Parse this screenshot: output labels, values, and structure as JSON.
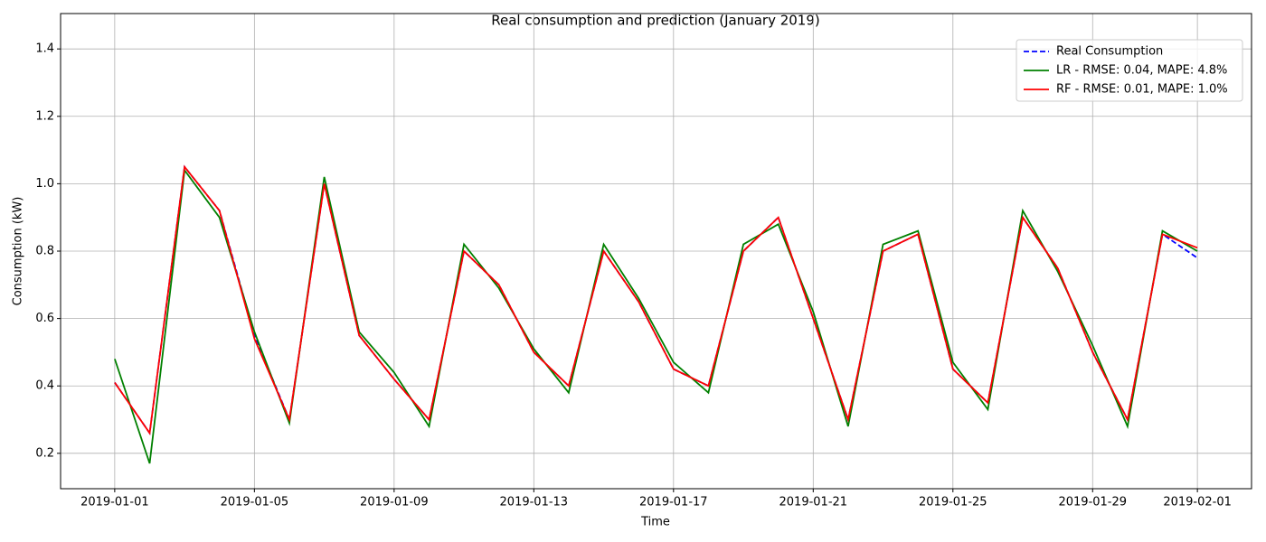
{
  "chart_data": {
    "type": "line",
    "title": "Real consumption and prediction (January 2019)",
    "x_label": "Time",
    "y_label": "Consumption (kW)",
    "x": [
      "2019-01-01",
      "2019-01-02",
      "2019-01-03",
      "2019-01-04",
      "2019-01-05",
      "2019-01-06",
      "2019-01-07",
      "2019-01-08",
      "2019-01-09",
      "2019-01-10",
      "2019-01-11",
      "2019-01-12",
      "2019-01-13",
      "2019-01-14",
      "2019-01-15",
      "2019-01-16",
      "2019-01-17",
      "2019-01-18",
      "2019-01-19",
      "2019-01-20",
      "2019-01-21",
      "2019-01-22",
      "2019-01-23",
      "2019-01-24",
      "2019-01-25",
      "2019-01-26",
      "2019-01-27",
      "2019-01-28",
      "2019-01-29",
      "2019-01-30",
      "2019-01-31",
      "2019-02-01"
    ],
    "series": [
      {
        "name": "Real Consumption",
        "color": "#0000ff",
        "dash": true,
        "values": [
          0.41,
          0.26,
          1.05,
          0.92,
          0.55,
          0.3,
          1.0,
          0.55,
          0.42,
          0.3,
          0.8,
          0.7,
          0.5,
          0.4,
          0.8,
          0.65,
          0.45,
          0.4,
          0.8,
          0.9,
          0.6,
          0.3,
          0.8,
          0.85,
          0.45,
          0.35,
          0.9,
          0.75,
          0.5,
          0.3,
          0.85,
          0.78
        ]
      },
      {
        "name": "LR - RMSE: 0.04, MAPE: 4.8%",
        "color": "#008000",
        "dash": false,
        "values": [
          0.48,
          0.17,
          1.04,
          0.9,
          0.56,
          0.29,
          1.02,
          0.56,
          0.44,
          0.28,
          0.82,
          0.69,
          0.51,
          0.38,
          0.82,
          0.66,
          0.47,
          0.38,
          0.82,
          0.88,
          0.62,
          0.28,
          0.82,
          0.86,
          0.47,
          0.33,
          0.92,
          0.74,
          0.52,
          0.28,
          0.86,
          0.8
        ]
      },
      {
        "name": "RF - RMSE: 0.01, MAPE: 1.0%",
        "color": "#ff0000",
        "dash": false,
        "values": [
          0.41,
          0.26,
          1.05,
          0.92,
          0.54,
          0.3,
          1.0,
          0.55,
          0.42,
          0.3,
          0.8,
          0.7,
          0.5,
          0.4,
          0.8,
          0.65,
          0.45,
          0.4,
          0.8,
          0.9,
          0.6,
          0.3,
          0.8,
          0.85,
          0.45,
          0.35,
          0.9,
          0.75,
          0.5,
          0.3,
          0.85,
          0.81
        ]
      }
    ],
    "xticks": [
      "2019-01-01",
      "2019-01-05",
      "2019-01-09",
      "2019-01-13",
      "2019-01-17",
      "2019-01-21",
      "2019-01-25",
      "2019-01-29",
      "2019-02-01"
    ],
    "ylim": [
      0.095,
      1.505
    ],
    "yticks": [
      0.2,
      0.4,
      0.6,
      0.8,
      {
        "value": 1,
        "label": "1.0"
      },
      1.2,
      1.4
    ],
    "grid": true,
    "legend": "upper right"
  }
}
